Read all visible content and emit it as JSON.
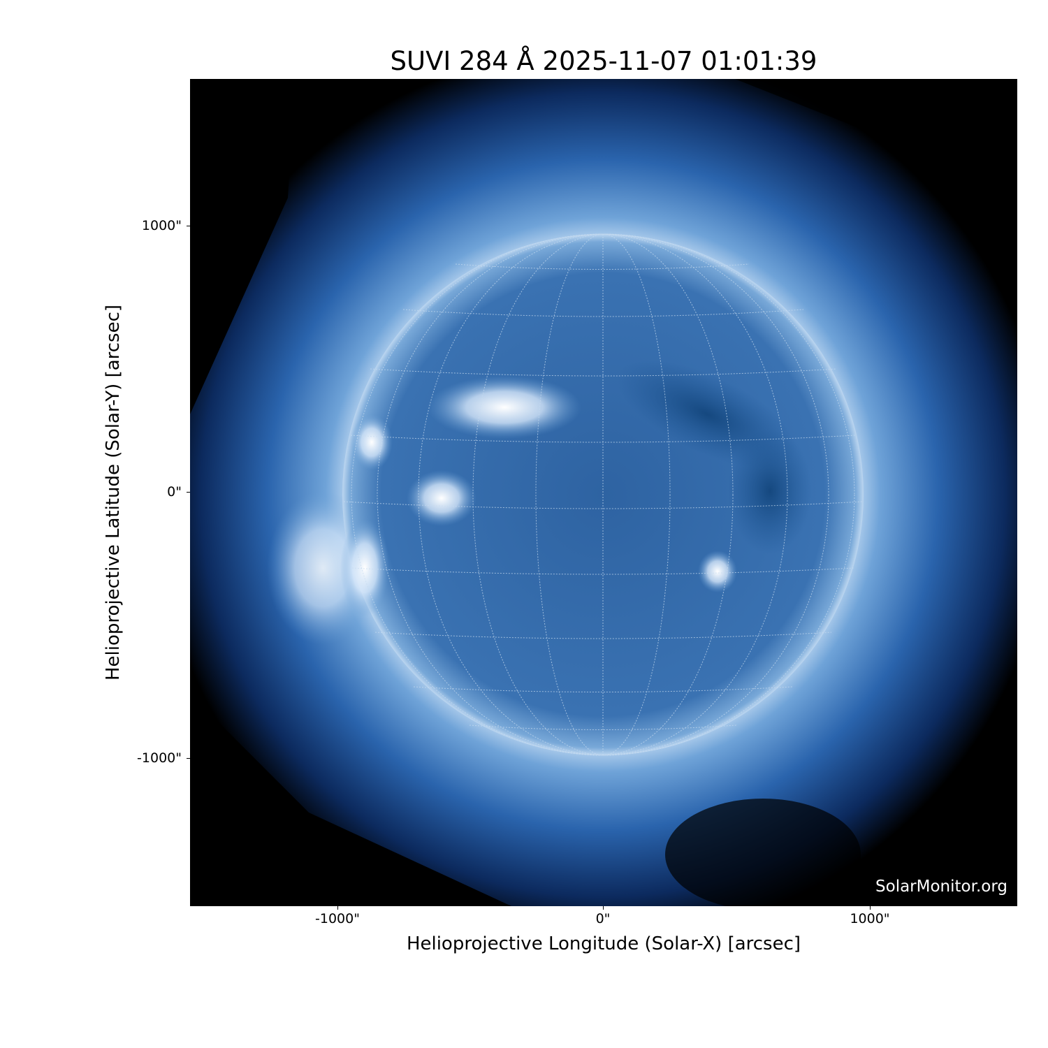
{
  "title": "SUVI 284 Å 2025-11-07 01:01:39",
  "xlabel": "Helioprojective Longitude (Solar-X) [arcsec]",
  "ylabel": "Helioprojective Latitude (Solar-Y) [arcsec]",
  "x_ticks": [
    "-1000\"",
    "0\"",
    "1000\""
  ],
  "y_ticks": [
    "1000\"",
    "0\"",
    "-1000\""
  ],
  "watermark": "SolarMonitor.org",
  "colors": {
    "background": "#000000",
    "disk": "#2f64a3",
    "bright": "#e8f2ff",
    "grid": "#c8dcf0"
  }
}
